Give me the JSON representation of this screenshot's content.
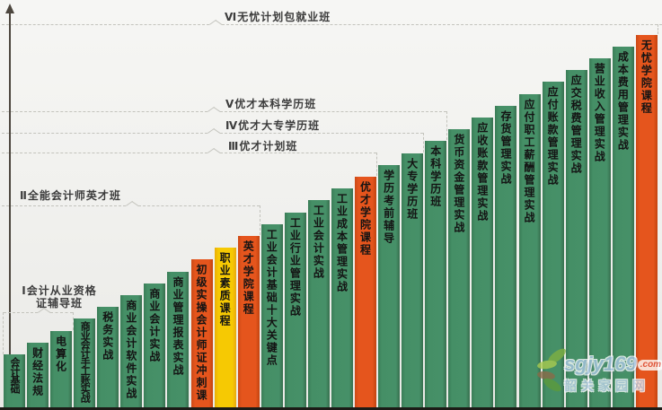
{
  "chart_data": {
    "type": "bar",
    "layout": "ascending-staircase",
    "title": "",
    "xlabel": "",
    "ylabel": "",
    "grid": false,
    "categories": [
      "会计基础",
      "财经法规",
      "电算化",
      "商业会计手工账实战",
      "税务实战",
      "商业会计软件实战",
      "商业会计实战",
      "商业管理报表实战",
      "初级实操会计师证冲刺课",
      "职业素质课程",
      "英才学院课程",
      "工业会计基础十大关键点",
      "工业行业管理实战",
      "工业会计实战",
      "工业成本管理实战",
      "优才学院课程",
      "学历考前辅导",
      "大专学历班",
      "本科学历班",
      "货币资金管理实战",
      "应收账款管理实战",
      "存货管理实战",
      "应付职工薪酬管理实战",
      "应付账款管理实战",
      "应交税费管理实战",
      "营业收入管理实战",
      "成本费用管理实战",
      "无忧学院课程"
    ],
    "values": [
      1,
      2,
      3,
      4,
      5,
      6,
      7,
      8,
      9,
      10,
      11,
      12,
      13,
      14,
      15,
      16,
      17,
      18,
      19,
      20,
      21,
      22,
      23,
      24,
      25,
      26,
      27,
      28
    ],
    "bar_colors": [
      "green",
      "green",
      "green",
      "green",
      "green",
      "green",
      "green",
      "green",
      "orange",
      "yellow",
      "orange",
      "green",
      "green",
      "green",
      "green",
      "orange",
      "green",
      "green",
      "green",
      "green",
      "green",
      "green",
      "green",
      "green",
      "green",
      "green",
      "green",
      "orange"
    ],
    "palette": {
      "green": "#45906A",
      "orange": "#E5551D",
      "yellow": "#F6C903"
    },
    "tiers": [
      {
        "label": "Ⅰ会计从业资格\n证辅导班",
        "ends_at_bar": 3
      },
      {
        "label": "Ⅱ全能会计师英才班",
        "ends_at_bar": 11
      },
      {
        "label": "Ⅲ优才计划班",
        "ends_at_bar": 16
      },
      {
        "label": "Ⅳ优才大专学历班",
        "ends_at_bar": 18
      },
      {
        "label": "Ⅴ优才本科学历班",
        "ends_at_bar": 19
      },
      {
        "label": "Ⅵ无忧计划包就业班",
        "ends_at_bar": 28
      }
    ]
  },
  "watermark": {
    "site": "sgjy169",
    "tld": ".com",
    "name": "韶关家园网"
  }
}
